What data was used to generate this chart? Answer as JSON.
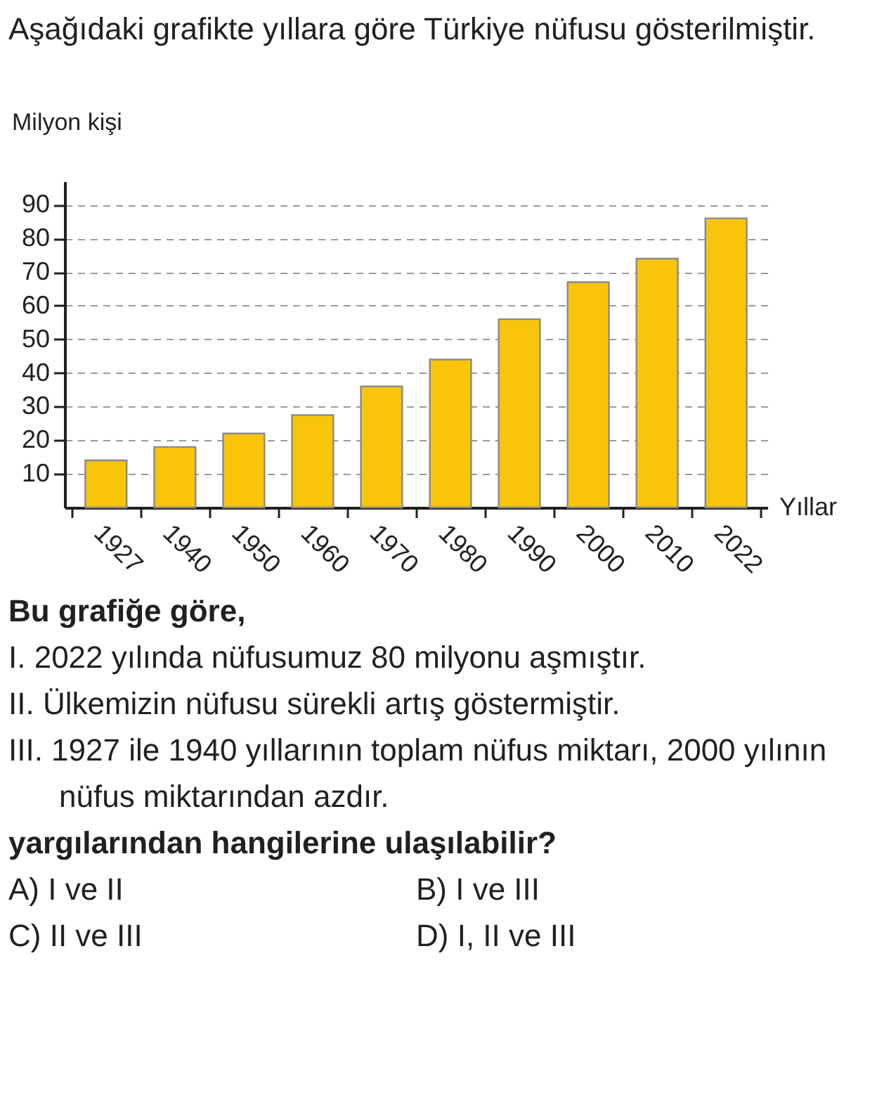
{
  "chart_data": {
    "type": "bar",
    "title": "Aşağıdaki grafikte yıllara göre Türkiye nüfusu gösterilmiştir.",
    "xlabel": "Yıllar",
    "ylabel": "Milyon kişi",
    "categories": [
      "1927",
      "1940",
      "1950",
      "1960",
      "1970",
      "1980",
      "1990",
      "2000",
      "2010",
      "2022"
    ],
    "values": [
      14,
      18,
      22,
      27.5,
      36,
      44,
      56,
      67,
      74,
      86
    ],
    "color": "#f9c50b",
    "ylim": [
      0,
      97
    ],
    "yticks": [
      10,
      20,
      30,
      40,
      50,
      60,
      70,
      80,
      90
    ],
    "grid": "y",
    "annotations": [
      "Bu grafiğe göre,",
      "I. 2022 yılında nüfusumuz 80 milyonu aşmıştır.",
      "II. Ülkemizin nüfusu sürekli artış göstermiştir.",
      "III. 1927 ile 1940 yıllarının toplam nüfus miktarı, 2000 yılının nüfus miktarından azdır.",
      "yargılarından hangilerine ulaşılabilir?",
      "A) I ve II",
      "B) I ve III",
      "C) II ve III",
      "D) I, II ve III"
    ]
  }
}
